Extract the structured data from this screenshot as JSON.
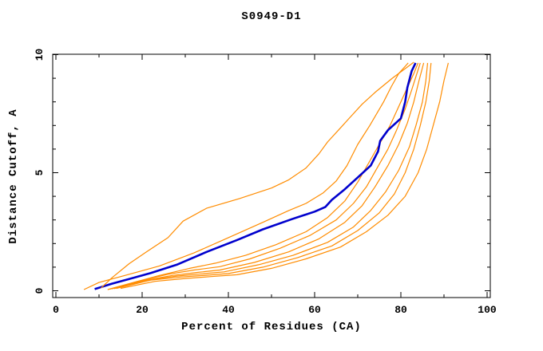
{
  "chart_data": {
    "type": "line",
    "title": "S0949-D1",
    "xlabel": "Percent of Residues (CA)",
    "ylabel": "Distance Cutoff, A",
    "xlim": [
      0,
      100
    ],
    "ylim": [
      0,
      10
    ],
    "x_major_ticks": [
      0,
      20,
      40,
      60,
      80,
      100
    ],
    "x_minor_ticks": [
      10,
      30,
      50,
      70,
      90
    ],
    "y_major_ticks": [
      0,
      5,
      10
    ],
    "y_minor_ticks": [
      1,
      2,
      3,
      4,
      6,
      7,
      8,
      9
    ],
    "grid": false,
    "legend": "none",
    "ticks_mirrored_inside": true,
    "colors": {
      "model": "#ff8c00",
      "highlighted": "#0000cd",
      "axis": "#000000",
      "background": "#ffffff"
    },
    "line_widths": {
      "model": 1.2,
      "highlighted": 2.6
    },
    "series": [
      {
        "name": "model-1",
        "role": "model",
        "points": [
          [
            12,
            0.05
          ],
          [
            18,
            0.35
          ],
          [
            24,
            0.65
          ],
          [
            31,
            0.95
          ],
          [
            37,
            1.17
          ],
          [
            44,
            1.5
          ],
          [
            51,
            1.95
          ],
          [
            58,
            2.5
          ],
          [
            63,
            3.1
          ],
          [
            67,
            3.8
          ],
          [
            70,
            4.6
          ],
          [
            72.5,
            5.4
          ],
          [
            75,
            6.2
          ],
          [
            77.5,
            7.0
          ],
          [
            79.5,
            7.8
          ],
          [
            81.5,
            8.6
          ],
          [
            83,
            9.2
          ],
          [
            84,
            9.65
          ]
        ]
      },
      {
        "name": "model-2",
        "role": "model",
        "points": [
          [
            12.5,
            0.07
          ],
          [
            19,
            0.4
          ],
          [
            26,
            0.7
          ],
          [
            32,
            0.88
          ],
          [
            38,
            1.02
          ],
          [
            45,
            1.35
          ],
          [
            52,
            1.8
          ],
          [
            59,
            2.35
          ],
          [
            65,
            3.0
          ],
          [
            69,
            3.7
          ],
          [
            72,
            4.4
          ],
          [
            74.5,
            5.2
          ],
          [
            77,
            6.0
          ],
          [
            79,
            6.8
          ],
          [
            81,
            7.7
          ],
          [
            82.5,
            8.5
          ],
          [
            84.5,
            9.65
          ]
        ]
      },
      {
        "name": "model-3",
        "role": "model",
        "points": [
          [
            13,
            0.08
          ],
          [
            20,
            0.42
          ],
          [
            27,
            0.65
          ],
          [
            33,
            0.78
          ],
          [
            38,
            0.88
          ],
          [
            46,
            1.2
          ],
          [
            54,
            1.65
          ],
          [
            61,
            2.2
          ],
          [
            67,
            2.9
          ],
          [
            71,
            3.6
          ],
          [
            74,
            4.4
          ],
          [
            77,
            5.3
          ],
          [
            79.5,
            6.2
          ],
          [
            81.5,
            7.1
          ],
          [
            83,
            8.0
          ],
          [
            84.2,
            8.9
          ],
          [
            85.3,
            9.65
          ]
        ]
      },
      {
        "name": "model-4",
        "role": "model",
        "points": [
          [
            13.5,
            0.09
          ],
          [
            21,
            0.45
          ],
          [
            28,
            0.62
          ],
          [
            34,
            0.72
          ],
          [
            39,
            0.8
          ],
          [
            47,
            1.1
          ],
          [
            55,
            1.5
          ],
          [
            63,
            2.05
          ],
          [
            69,
            2.7
          ],
          [
            73,
            3.4
          ],
          [
            76.5,
            4.2
          ],
          [
            79.5,
            5.1
          ],
          [
            82,
            6.1
          ],
          [
            83.5,
            7.0
          ],
          [
            85,
            8.0
          ],
          [
            85.8,
            8.9
          ],
          [
            86.2,
            9.65
          ]
        ]
      },
      {
        "name": "model-5",
        "role": "model",
        "points": [
          [
            14,
            0.1
          ],
          [
            22,
            0.45
          ],
          [
            29,
            0.58
          ],
          [
            35,
            0.66
          ],
          [
            40,
            0.73
          ],
          [
            48,
            1.0
          ],
          [
            56,
            1.4
          ],
          [
            64,
            1.9
          ],
          [
            70,
            2.55
          ],
          [
            75,
            3.3
          ],
          [
            78.5,
            4.1
          ],
          [
            81,
            5.0
          ],
          [
            83,
            6.0
          ],
          [
            84.5,
            7.0
          ],
          [
            85.8,
            8.0
          ],
          [
            86.6,
            8.9
          ],
          [
            87,
            9.65
          ]
        ]
      },
      {
        "name": "model-6",
        "role": "model",
        "points": [
          [
            15,
            0.1
          ],
          [
            23,
            0.4
          ],
          [
            30,
            0.52
          ],
          [
            36,
            0.6
          ],
          [
            42,
            0.68
          ],
          [
            50,
            0.95
          ],
          [
            58,
            1.35
          ],
          [
            66,
            1.85
          ],
          [
            72,
            2.5
          ],
          [
            77,
            3.2
          ],
          [
            81,
            4.0
          ],
          [
            84,
            5.0
          ],
          [
            86,
            6.0
          ],
          [
            87.5,
            7.0
          ],
          [
            89,
            8.0
          ],
          [
            90,
            8.9
          ],
          [
            91,
            9.65
          ]
        ]
      },
      {
        "name": "highlighted-model",
        "role": "highlighted",
        "points": [
          [
            9,
            0.07
          ],
          [
            13,
            0.3
          ],
          [
            18,
            0.55
          ],
          [
            22,
            0.75
          ],
          [
            28,
            1.1
          ],
          [
            35,
            1.65
          ],
          [
            42,
            2.15
          ],
          [
            48,
            2.6
          ],
          [
            55,
            3.05
          ],
          [
            60,
            3.35
          ],
          [
            62.5,
            3.55
          ],
          [
            64,
            3.85
          ],
          [
            67,
            4.3
          ],
          [
            70,
            4.8
          ],
          [
            73,
            5.3
          ],
          [
            74.7,
            5.9
          ],
          [
            75.2,
            6.35
          ],
          [
            77,
            6.8
          ],
          [
            80,
            7.3
          ],
          [
            81,
            8.0
          ],
          [
            81.5,
            8.6
          ],
          [
            82.5,
            9.3
          ],
          [
            83.4,
            9.65
          ]
        ]
      },
      {
        "name": "model-7",
        "role": "model",
        "points": [
          [
            6.5,
            0.05
          ],
          [
            10,
            0.35
          ],
          [
            16,
            0.65
          ],
          [
            24,
            1.05
          ],
          [
            32,
            1.6
          ],
          [
            40,
            2.25
          ],
          [
            48,
            2.9
          ],
          [
            54,
            3.4
          ],
          [
            58,
            3.7
          ],
          [
            62,
            4.15
          ],
          [
            65,
            4.65
          ],
          [
            67.5,
            5.3
          ],
          [
            70,
            6.2
          ],
          [
            72.8,
            7.0
          ],
          [
            76,
            8.0
          ],
          [
            77.8,
            8.65
          ],
          [
            79.5,
            9.2
          ],
          [
            81.7,
            9.65
          ]
        ]
      },
      {
        "name": "model-8",
        "role": "model",
        "points": [
          [
            10.5,
            0.12
          ],
          [
            13,
            0.55
          ],
          [
            17,
            1.15
          ],
          [
            21,
            1.65
          ],
          [
            26,
            2.25
          ],
          [
            29.5,
            2.95
          ],
          [
            35,
            3.5
          ],
          [
            42.5,
            3.9
          ],
          [
            50,
            4.35
          ],
          [
            54,
            4.7
          ],
          [
            58,
            5.2
          ],
          [
            61,
            5.8
          ],
          [
            63,
            6.3
          ],
          [
            66,
            6.9
          ],
          [
            68,
            7.3
          ],
          [
            71,
            7.9
          ],
          [
            74,
            8.4
          ],
          [
            78,
            9.0
          ],
          [
            83,
            9.68
          ]
        ]
      }
    ]
  }
}
